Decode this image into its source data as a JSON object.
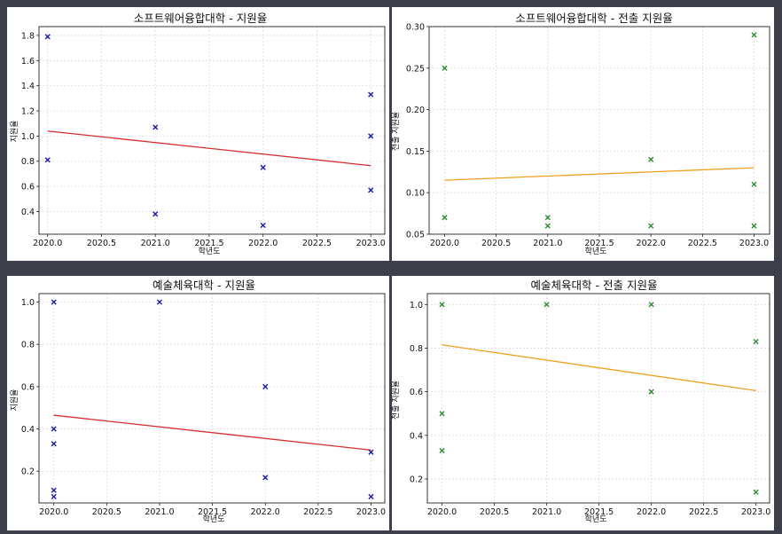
{
  "chart_data": [
    {
      "type": "scatter",
      "title": "소프트웨어융합대학 - 지원율",
      "xlabel": "학년도",
      "ylabel": "지원율",
      "xlim": [
        2019.92,
        2023.13
      ],
      "ylim": [
        0.22,
        1.87
      ],
      "xticks": [
        "2020.0",
        "2020.5",
        "2021.0",
        "2021.5",
        "2022.0",
        "2022.5",
        "2023.0"
      ],
      "yticks": [
        "0.4",
        "0.6",
        "0.8",
        "1.0",
        "1.2",
        "1.4",
        "1.6",
        "1.8"
      ],
      "marker_color": "#1a1aaa",
      "line_color": "#d62d2d",
      "points": [
        {
          "x": 2020,
          "y": 1.79
        },
        {
          "x": 2020,
          "y": 0.81
        },
        {
          "x": 2021,
          "y": 1.07
        },
        {
          "x": 2021,
          "y": 0.38
        },
        {
          "x": 2022,
          "y": 0.75
        },
        {
          "x": 2022,
          "y": 0.29
        },
        {
          "x": 2023,
          "y": 1.33
        },
        {
          "x": 2023,
          "y": 1.0
        },
        {
          "x": 2023,
          "y": 0.57
        }
      ],
      "trendline": [
        {
          "x": 2020,
          "y": 1.04
        },
        {
          "x": 2023,
          "y": 0.765
        }
      ]
    },
    {
      "type": "scatter",
      "title": "소프트웨어융합대학 - 전출 지원율",
      "xlabel": "학년도",
      "ylabel": "전출 지원율",
      "xlim": [
        2019.85,
        2023.15
      ],
      "ylim": [
        0.05,
        0.3
      ],
      "xticks": [
        "2020.0",
        "2020.5",
        "2021.0",
        "2021.5",
        "2022.0",
        "2022.5",
        "2023.0"
      ],
      "yticks": [
        "0.05",
        "0.10",
        "0.15",
        "0.20",
        "0.25",
        "0.30"
      ],
      "marker_color": "#2e8b2e",
      "line_color": "#f0a020",
      "points": [
        {
          "x": 2020,
          "y": 0.25
        },
        {
          "x": 2020,
          "y": 0.07
        },
        {
          "x": 2021,
          "y": 0.07
        },
        {
          "x": 2021,
          "y": 0.06
        },
        {
          "x": 2022,
          "y": 0.14
        },
        {
          "x": 2022,
          "y": 0.06
        },
        {
          "x": 2023,
          "y": 0.29
        },
        {
          "x": 2023,
          "y": 0.11
        },
        {
          "x": 2023,
          "y": 0.06
        }
      ],
      "trendline": [
        {
          "x": 2020,
          "y": 0.115
        },
        {
          "x": 2023,
          "y": 0.13
        }
      ]
    },
    {
      "type": "scatter",
      "title": "예술체육대학 - 지원율",
      "xlabel": "학년도",
      "ylabel": "지원율",
      "xlim": [
        2019.86,
        2023.13
      ],
      "ylim": [
        0.05,
        1.04
      ],
      "xticks": [
        "2020.0",
        "2020.5",
        "2021.0",
        "2021.5",
        "2022.0",
        "2022.5",
        "2023.0"
      ],
      "yticks": [
        "0.2",
        "0.4",
        "0.6",
        "0.8",
        "1.0"
      ],
      "marker_color": "#1a1aaa",
      "line_color": "#d62d2d",
      "points": [
        {
          "x": 2020,
          "y": 1.0
        },
        {
          "x": 2020,
          "y": 0.4
        },
        {
          "x": 2020,
          "y": 0.33
        },
        {
          "x": 2020,
          "y": 0.11
        },
        {
          "x": 2020,
          "y": 0.08
        },
        {
          "x": 2021,
          "y": 1.0
        },
        {
          "x": 2022,
          "y": 0.6
        },
        {
          "x": 2022,
          "y": 0.17
        },
        {
          "x": 2023,
          "y": 0.29
        },
        {
          "x": 2023,
          "y": 0.08
        }
      ],
      "trendline": [
        {
          "x": 2020,
          "y": 0.465
        },
        {
          "x": 2023,
          "y": 0.3
        }
      ]
    },
    {
      "type": "scatter",
      "title": "예술체육대학 - 전출 지원율",
      "xlabel": "학년도",
      "ylabel": "전출 지원율",
      "xlim": [
        2019.86,
        2023.13
      ],
      "ylim": [
        0.09,
        1.05
      ],
      "xticks": [
        "2020.0",
        "2020.5",
        "2021.0",
        "2021.5",
        "2022.0",
        "2022.5",
        "2023.0"
      ],
      "yticks": [
        "0.2",
        "0.4",
        "0.6",
        "0.8",
        "1.0"
      ],
      "marker_color": "#2e8b2e",
      "line_color": "#f0a020",
      "points": [
        {
          "x": 2020,
          "y": 1.0
        },
        {
          "x": 2020,
          "y": 0.5
        },
        {
          "x": 2020,
          "y": 0.33
        },
        {
          "x": 2021,
          "y": 1.0
        },
        {
          "x": 2022,
          "y": 1.0
        },
        {
          "x": 2022,
          "y": 0.6
        },
        {
          "x": 2023,
          "y": 0.83
        },
        {
          "x": 2023,
          "y": 0.14
        }
      ],
      "trendline": [
        {
          "x": 2020,
          "y": 0.815
        },
        {
          "x": 2023,
          "y": 0.605
        }
      ]
    }
  ]
}
